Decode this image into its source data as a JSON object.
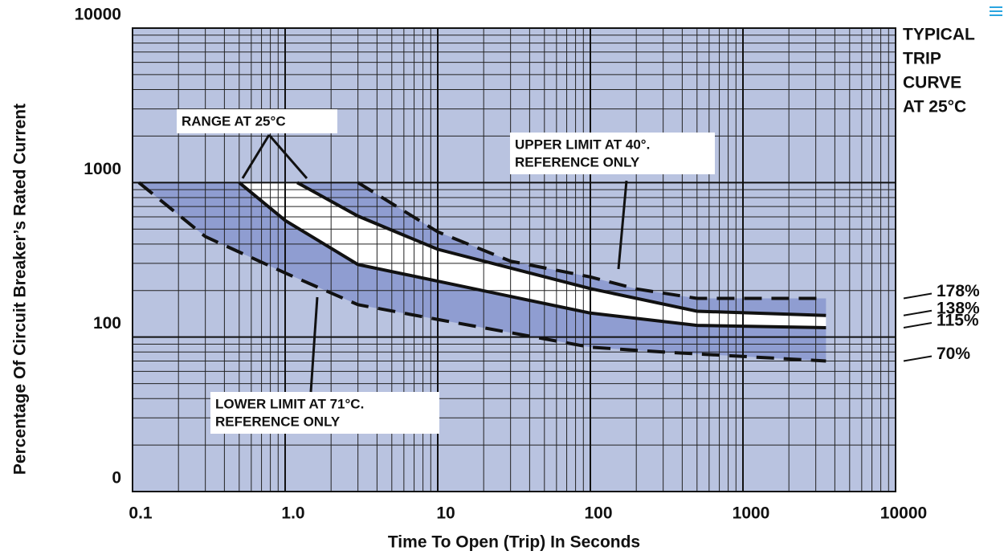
{
  "chart_data": {
    "type": "line",
    "x_label": "Time To Open (Trip) In Seconds",
    "y_label": "Percentage Of Circuit Breaker’s Rated Current",
    "xscale": "log",
    "yscale": "log",
    "xlim": [
      0.1,
      10000
    ],
    "ylim": [
      10,
      10000
    ],
    "xticks": [
      0.1,
      {
        "value": 1,
        "label": "1.0"
      },
      10,
      100,
      1000,
      10000
    ],
    "yticks": [
      {
        "value": 10,
        "label": "0"
      },
      100,
      1000,
      10000
    ],
    "grid": true,
    "minor_grid": true,
    "background": "#b9c3e0",
    "band_color": "#8f9dd1",
    "range_color": "#ffffff",
    "series": [
      {
        "style": "dashed",
        "color": "#111111",
        "end_label": "178%",
        "x": [
          3,
          10,
          30,
          100,
          200,
          500,
          3500
        ],
        "values": [
          1000,
          480,
          310,
          245,
          205,
          178,
          178
        ]
      },
      {
        "style": "solid",
        "color": "#111111",
        "end_label": "138%",
        "x": [
          1.2,
          3,
          10,
          100,
          500,
          3500
        ],
        "values": [
          1000,
          607,
          370,
          206,
          147,
          138
        ]
      },
      {
        "style": "solid",
        "color": "#111111",
        "end_label": "115%",
        "x": [
          0.5,
          1,
          3,
          10,
          100,
          500,
          3500
        ],
        "values": [
          1000,
          569,
          295,
          230,
          143,
          119,
          115
        ]
      },
      {
        "style": "dashed",
        "color": "#111111",
        "end_label": "70%",
        "x": [
          0.11,
          0.3,
          1,
          3,
          10,
          100,
          300,
          3500
        ],
        "values": [
          1000,
          447,
          260,
          162,
          130,
          86,
          80,
          70
        ]
      }
    ],
    "annotations": {
      "range": [
        "RANGE AT 25°C"
      ],
      "upper": [
        "UPPER LIMIT AT 40°.",
        "REFERENCE ONLY"
      ],
      "lower": [
        "LOWER LIMIT AT 71°C.",
        "REFERENCE ONLY"
      ],
      "typical": [
        "TYPICAL",
        "TRIP",
        "CURVE",
        "AT 25°C"
      ]
    }
  }
}
